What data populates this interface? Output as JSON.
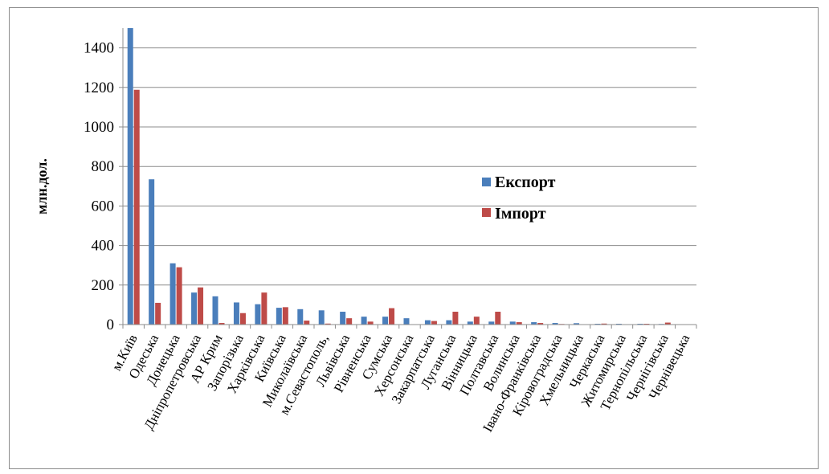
{
  "chart_data": {
    "type": "bar",
    "title": "",
    "xlabel": "",
    "ylabel": "млн.дол.",
    "ylim": [
      0,
      1500
    ],
    "yticks": [
      0,
      200,
      400,
      600,
      800,
      1000,
      1200,
      1400
    ],
    "grid": true,
    "legend_position": "center-right",
    "categories": [
      "м.Київ",
      "Одеська",
      "Донецька",
      "Дніпропетровська",
      "АР Крим",
      "Запорізька",
      "Харківська",
      "Київська",
      "Миколаївська",
      "м.Севастополь,",
      "Львівська",
      "Рівненська",
      "Сумська",
      "Херсонська",
      "Закарпатська",
      "Луганська",
      "Вінницька",
      "Полтавська",
      "Волинська",
      "Івано-Франківська",
      "Кіровоградська",
      "Хмельницька",
      "Черкаська",
      "Житомирська",
      "Тернопільська",
      "Чернігівська",
      "Чернівецька"
    ],
    "series": [
      {
        "name": "Експорт",
        "color": "#4a7ebb",
        "values": [
          1500,
          735,
          310,
          162,
          143,
          112,
          103,
          85,
          78,
          72,
          65,
          40,
          40,
          32,
          22,
          22,
          15,
          15,
          15,
          12,
          8,
          7,
          4,
          4,
          4,
          3,
          2
        ]
      },
      {
        "name": "Імпорт",
        "color": "#be4b48",
        "values": [
          1188,
          110,
          290,
          188,
          8,
          58,
          162,
          88,
          20,
          5,
          32,
          15,
          83,
          2,
          18,
          65,
          40,
          65,
          12,
          8,
          3,
          2,
          5,
          2,
          4,
          10,
          1
        ]
      }
    ]
  }
}
